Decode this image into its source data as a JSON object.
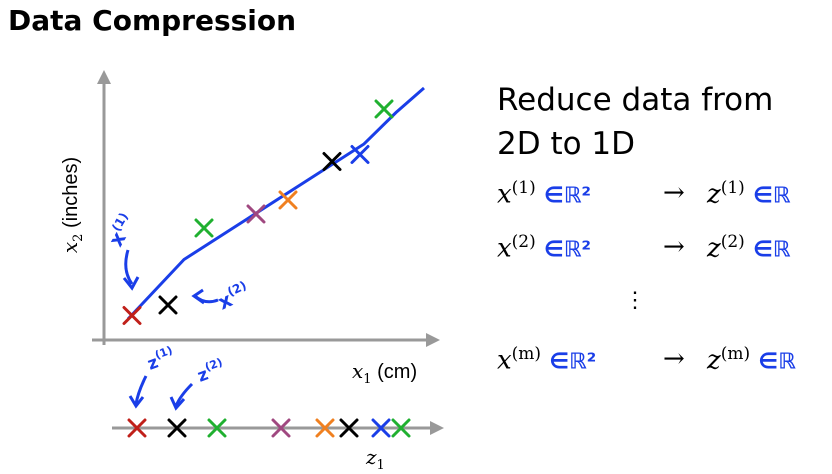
{
  "title": "Data Compression",
  "chart_data": {
    "type": "scatter",
    "xlabel": "x_1 (cm)",
    "ylabel": "x_2 (inches)",
    "projection_axis_label": "z_1",
    "points_2d": [
      {
        "x": 0.7,
        "y": 0.7,
        "color": "#c0201a"
      },
      {
        "x": 1.6,
        "y": 1.0,
        "color": "#000000"
      },
      {
        "x": 2.5,
        "y": 3.2,
        "color": "#20b030"
      },
      {
        "x": 3.8,
        "y": 3.6,
        "color": "#a04880"
      },
      {
        "x": 4.6,
        "y": 4.0,
        "color": "#f08020"
      },
      {
        "x": 5.7,
        "y": 5.1,
        "color": "#000000"
      },
      {
        "x": 6.4,
        "y": 5.3,
        "color": "#1a3ee8"
      },
      {
        "x": 7.0,
        "y": 6.6,
        "color": "#20b030"
      }
    ],
    "points_1d": [
      {
        "z": 1.0,
        "color": "#c0201a"
      },
      {
        "z": 2.0,
        "color": "#000000"
      },
      {
        "z": 3.0,
        "color": "#20b030"
      },
      {
        "z": 4.6,
        "color": "#a04880"
      },
      {
        "z": 5.7,
        "color": "#f08020"
      },
      {
        "z": 6.3,
        "color": "#000000"
      },
      {
        "z": 7.1,
        "color": "#1a3ee8"
      },
      {
        "z": 7.6,
        "color": "#20b030"
      }
    ],
    "fit_line": [
      [
        0.6,
        0.6
      ],
      [
        2.0,
        2.3
      ],
      [
        3.5,
        3.4
      ],
      [
        5.0,
        4.5
      ],
      [
        6.5,
        5.6
      ],
      [
        7.3,
        6.5
      ],
      [
        8.0,
        7.2
      ]
    ],
    "annotations": [
      "x^(1)",
      "x^(2)",
      "z^(1)",
      "z^(2)"
    ]
  },
  "description": {
    "line1": "Reduce data from",
    "line2": "2D to 1D"
  },
  "rows": [
    {
      "x": "x",
      "xsup": "(1)",
      "in1": "∈ℝ²",
      "arrow": "→",
      "z": "z",
      "zsup": "(1)",
      "in2": "∈ℝ"
    },
    {
      "x": "x",
      "xsup": "(2)",
      "in1": "∈ℝ²",
      "arrow": "→",
      "z": "z",
      "zsup": "(2)",
      "in2": "∈ℝ"
    },
    {
      "x": "x",
      "xsup": "(m)",
      "in1": "∈ℝ²",
      "arrow": "→",
      "z": "z",
      "zsup": "(m)",
      "in2": "∈ℝ"
    }
  ],
  "vdots": "⋮",
  "colors": {
    "handwriting": "#1a3ee8",
    "axis": "#999999"
  }
}
